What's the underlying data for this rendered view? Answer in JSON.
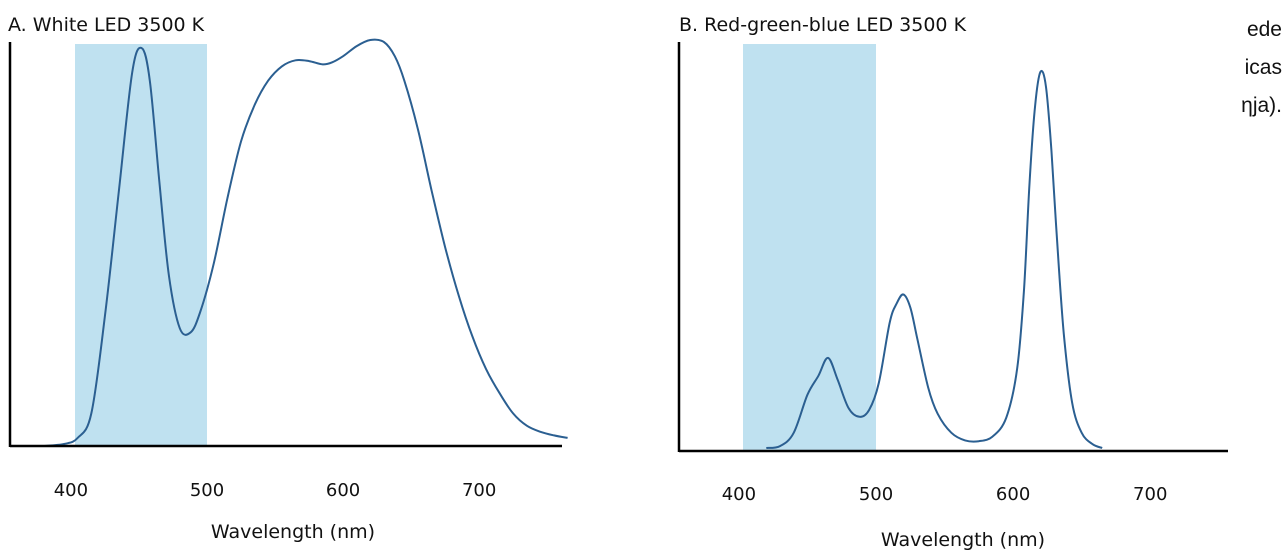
{
  "colors": {
    "curve": "#2b5f91",
    "band": "#bfe1f0",
    "axis": "#000000"
  },
  "side_text": [
    "ede",
    "icas",
    "ηja)."
  ],
  "chart_data": [
    {
      "type": "line",
      "title": "A. White LED 3500 K",
      "xlabel": "Wavelength (nm)",
      "ylabel": "",
      "x_ticks": [
        400,
        500,
        600,
        700
      ],
      "xlim": [
        380,
        765
      ],
      "ylim": [
        0,
        1.0
      ],
      "highlight_band": [
        403,
        500
      ],
      "series": [
        {
          "x": [
            380,
            395,
            405,
            415,
            425,
            435,
            445,
            452,
            458,
            465,
            472,
            480,
            488,
            495,
            505,
            515,
            525,
            535,
            545,
            555,
            565,
            575,
            585,
            592,
            600,
            610,
            620,
            630,
            638,
            645,
            655,
            665,
            675,
            685,
            695,
            705,
            715,
            725,
            735,
            745,
            755,
            765
          ],
          "y": [
            0.0,
            0.005,
            0.02,
            0.08,
            0.32,
            0.62,
            0.92,
            0.98,
            0.9,
            0.65,
            0.42,
            0.29,
            0.28,
            0.33,
            0.45,
            0.61,
            0.75,
            0.84,
            0.9,
            0.935,
            0.95,
            0.948,
            0.94,
            0.945,
            0.96,
            0.985,
            1.0,
            0.995,
            0.96,
            0.9,
            0.78,
            0.63,
            0.49,
            0.37,
            0.27,
            0.19,
            0.13,
            0.08,
            0.05,
            0.035,
            0.026,
            0.02
          ]
        }
      ]
    },
    {
      "type": "line",
      "title": "B. Red-green-blue LED 3500 K",
      "xlabel": "Wavelength (nm)",
      "ylabel": "",
      "x_ticks": [
        400,
        500,
        600,
        700
      ],
      "xlim": [
        350,
        760
      ],
      "ylim": [
        0,
        1.0
      ],
      "highlight_band": [
        403,
        500
      ],
      "series": [
        {
          "x": [
            420,
            430,
            440,
            450,
            458,
            465,
            472,
            480,
            488,
            495,
            502,
            510,
            515,
            520,
            525,
            530,
            538,
            545,
            555,
            565,
            575,
            585,
            595,
            603,
            608,
            612,
            616,
            620,
            624,
            628,
            632,
            637,
            643,
            650,
            658,
            665
          ],
          "y": [
            0.0,
            0.005,
            0.04,
            0.14,
            0.19,
            0.237,
            0.18,
            0.105,
            0.082,
            0.1,
            0.17,
            0.33,
            0.38,
            0.404,
            0.37,
            0.29,
            0.16,
            0.09,
            0.04,
            0.02,
            0.018,
            0.03,
            0.08,
            0.21,
            0.42,
            0.7,
            0.9,
            0.99,
            0.95,
            0.78,
            0.55,
            0.3,
            0.12,
            0.04,
            0.01,
            0.0
          ]
        }
      ]
    }
  ]
}
